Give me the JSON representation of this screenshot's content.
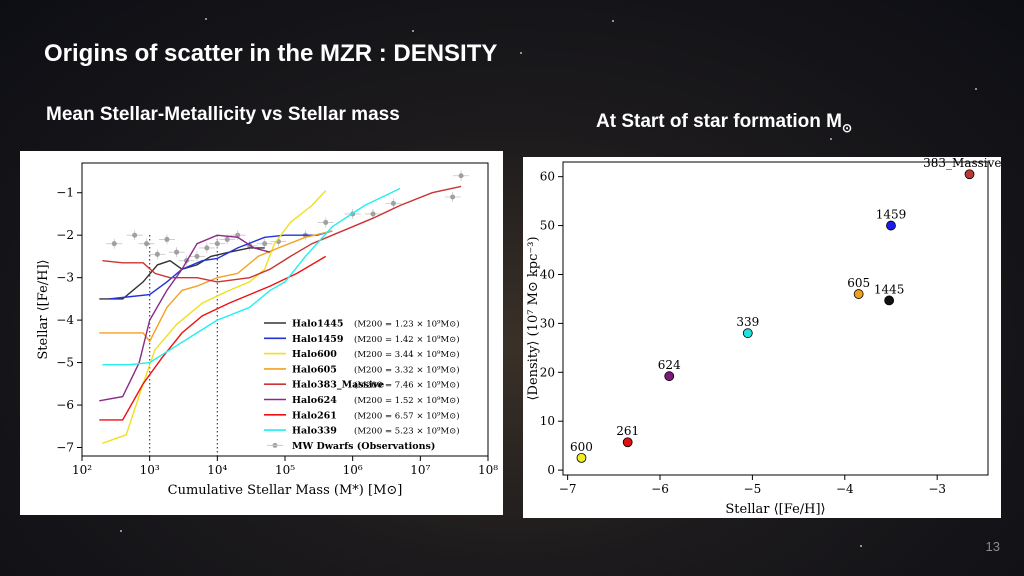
{
  "slide": {
    "title": "Origins of scatter in the MZR :  DENSITY",
    "left_subtitle": "Mean Stellar-Metallicity vs Stellar mass",
    "right_subtitle_main": "At Start of star formation M",
    "right_subtitle_sub": "⊙",
    "page_number": "13"
  },
  "chart_data": [
    {
      "type": "line",
      "xlabel": "Cumulative Stellar Mass (M*) [M⊙]",
      "ylabel": "Stellar ⟨[Fe/H]⟩",
      "xscale": "log",
      "xlim": [
        100,
        100000000
      ],
      "ylim": [
        -7.2,
        -0.3
      ],
      "x_tick_labels": [
        "10²",
        "10³",
        "10⁴",
        "10⁵",
        "10⁶",
        "10⁷",
        "10⁸"
      ],
      "y_tick_labels": [
        "−1",
        "−2",
        "−3",
        "−4",
        "−5",
        "−6",
        "−7"
      ],
      "legend_position": "lower-right",
      "vlines": [
        1000,
        10000
      ],
      "series": [
        {
          "name": "Halo1445",
          "mass_label": "(M200 = 1.23 × 10⁹M⊙)",
          "color": "#333333",
          "points": [
            [
              180,
              -3.5
            ],
            [
              400,
              -3.5
            ],
            [
              800,
              -3.1
            ],
            [
              1300,
              -2.7
            ],
            [
              2000,
              -2.6
            ],
            [
              3000,
              -2.8
            ],
            [
              5000,
              -2.7
            ],
            [
              8000,
              -2.5
            ],
            [
              15000,
              -2.4
            ],
            [
              30000,
              -2.3
            ],
            [
              50000,
              -2.3
            ]
          ]
        },
        {
          "name": "Halo1459",
          "mass_label": "(M200 = 1.42 × 10⁹M⊙)",
          "color": "#2233dd",
          "points": [
            [
              250,
              -3.5
            ],
            [
              1000,
              -3.4
            ],
            [
              1800,
              -3.1
            ],
            [
              3000,
              -2.8
            ],
            [
              6000,
              -2.6
            ],
            [
              10000,
              -2.55
            ],
            [
              20000,
              -2.3
            ],
            [
              50000,
              -2.05
            ],
            [
              100000,
              -2.0
            ],
            [
              300000,
              -2.0
            ],
            [
              500000,
              -1.9
            ]
          ]
        },
        {
          "name": "Halo600",
          "mass_label": "(M200 = 3.44 × 10⁹M⊙)",
          "color": "#f0e020",
          "points": [
            [
              200,
              -6.9
            ],
            [
              450,
              -6.7
            ],
            [
              800,
              -5.5
            ],
            [
              1200,
              -4.7
            ],
            [
              2500,
              -4.1
            ],
            [
              6000,
              -3.6
            ],
            [
              15000,
              -3.3
            ],
            [
              30000,
              -3.1
            ],
            [
              50000,
              -2.8
            ],
            [
              70000,
              -2.2
            ],
            [
              120000,
              -1.7
            ],
            [
              250000,
              -1.3
            ],
            [
              400000,
              -0.95
            ]
          ]
        },
        {
          "name": "Halo605",
          "mass_label": "(M200 = 3.32 × 10⁹M⊙)",
          "color": "#f5a020",
          "points": [
            [
              180,
              -4.3
            ],
            [
              400,
              -4.3
            ],
            [
              800,
              -4.3
            ],
            [
              1000,
              -4.5
            ],
            [
              1800,
              -3.7
            ],
            [
              3000,
              -3.3
            ],
            [
              5000,
              -3.2
            ],
            [
              10000,
              -3.0
            ],
            [
              20000,
              -2.9
            ],
            [
              40000,
              -2.5
            ],
            [
              80000,
              -2.3
            ],
            [
              200000,
              -2.05
            ],
            [
              500000,
              -1.9
            ]
          ]
        },
        {
          "name": "Halo383_Massive",
          "mass_label": "(M200 = 7.46 × 10⁹M⊙)",
          "color": "#cc3333",
          "points": [
            [
              200,
              -2.6
            ],
            [
              400,
              -2.65
            ],
            [
              800,
              -2.65
            ],
            [
              1200,
              -2.9
            ],
            [
              2000,
              -3.0
            ],
            [
              5000,
              -3.0
            ],
            [
              10000,
              -3.1
            ],
            [
              30000,
              -3.0
            ],
            [
              60000,
              -2.8
            ],
            [
              120000,
              -2.5
            ],
            [
              250000,
              -2.2
            ],
            [
              500000,
              -2.0
            ],
            [
              1000000,
              -1.8
            ],
            [
              2000000,
              -1.6
            ],
            [
              5000000,
              -1.3
            ],
            [
              15000000,
              -1.0
            ],
            [
              40000000,
              -0.85
            ]
          ]
        },
        {
          "name": "Halo624",
          "mass_label": "(M200 = 1.52 × 10⁹M⊙)",
          "color": "#8a2a8a",
          "points": [
            [
              180,
              -5.9
            ],
            [
              400,
              -5.8
            ],
            [
              700,
              -5.0
            ],
            [
              1000,
              -4.0
            ],
            [
              1800,
              -3.3
            ],
            [
              3000,
              -2.8
            ],
            [
              5000,
              -2.2
            ],
            [
              10000,
              -2.0
            ],
            [
              20000,
              -2.05
            ],
            [
              35000,
              -2.3
            ],
            [
              60000,
              -2.4
            ]
          ]
        },
        {
          "name": "Halo261",
          "mass_label": "(M200 = 6.57 × 10⁹M⊙)",
          "color": "#ee1111",
          "points": [
            [
              180,
              -6.35
            ],
            [
              400,
              -6.35
            ],
            [
              800,
              -5.5
            ],
            [
              1500,
              -4.9
            ],
            [
              3000,
              -4.3
            ],
            [
              6000,
              -3.9
            ],
            [
              15000,
              -3.6
            ],
            [
              30000,
              -3.4
            ],
            [
              60000,
              -3.2
            ],
            [
              150000,
              -2.9
            ],
            [
              400000,
              -2.5
            ]
          ]
        },
        {
          "name": "Halo339",
          "mass_label": "(M200 = 5.23 × 10⁹M⊙)",
          "color": "#22eeee",
          "points": [
            [
              200,
              -5.05
            ],
            [
              500,
              -5.05
            ],
            [
              1000,
              -5.0
            ],
            [
              2000,
              -4.7
            ],
            [
              5000,
              -4.3
            ],
            [
              10000,
              -4.0
            ],
            [
              30000,
              -3.7
            ],
            [
              60000,
              -3.3
            ],
            [
              100000,
              -3.1
            ],
            [
              200000,
              -2.5
            ],
            [
              500000,
              -1.8
            ],
            [
              1500000,
              -1.3
            ],
            [
              5000000,
              -0.9
            ]
          ]
        }
      ],
      "observations": {
        "name": "MW Dwarfs (Observations)",
        "color": "#a0a0a0",
        "points": [
          [
            300,
            -2.2
          ],
          [
            600,
            -2.0
          ],
          [
            900,
            -2.2
          ],
          [
            1300,
            -2.45
          ],
          [
            1800,
            -2.1
          ],
          [
            2500,
            -2.4
          ],
          [
            3500,
            -2.6
          ],
          [
            5000,
            -2.5
          ],
          [
            7000,
            -2.3
          ],
          [
            10000,
            -2.2
          ],
          [
            14000,
            -2.1
          ],
          [
            20000,
            -2.0
          ],
          [
            30000,
            -2.25
          ],
          [
            50000,
            -2.2
          ],
          [
            80000,
            -2.15
          ],
          [
            200000,
            -2.0
          ],
          [
            400000,
            -1.7
          ],
          [
            1000000,
            -1.5
          ],
          [
            2000000,
            -1.5
          ],
          [
            4000000,
            -1.25
          ],
          [
            30000000,
            -1.1
          ],
          [
            40000000,
            -0.6
          ]
        ]
      }
    },
    {
      "type": "scatter",
      "xlabel": "Stellar ⟨[Fe/H]⟩",
      "ylabel": "⟨Density⟩ (10⁷ M⊙ kpc⁻³)",
      "xlim": [
        -7.05,
        -2.45
      ],
      "ylim": [
        -1,
        63
      ],
      "x_tick_labels": [
        "−7",
        "−6",
        "−5",
        "−4",
        "−3"
      ],
      "y_tick_labels": [
        "0",
        "10",
        "20",
        "30",
        "40",
        "50",
        "60"
      ],
      "points": [
        {
          "label": "383_Massive",
          "x": -2.65,
          "y": 60.5,
          "color": "#b83a3a"
        },
        {
          "label": "1459",
          "x": -3.5,
          "y": 50,
          "color": "#1a1aee"
        },
        {
          "label": "605",
          "x": -3.85,
          "y": 36,
          "color": "#f0a020"
        },
        {
          "label": "1445",
          "x": -3.52,
          "y": 34.7,
          "color": "#111111"
        },
        {
          "label": "339",
          "x": -5.05,
          "y": 28,
          "color": "#22e0e0"
        },
        {
          "label": "624",
          "x": -5.9,
          "y": 19.2,
          "color": "#7a1a7a"
        },
        {
          "label": "261",
          "x": -6.35,
          "y": 5.7,
          "color": "#dd1111"
        },
        {
          "label": "600",
          "x": -6.85,
          "y": 2.5,
          "color": "#eeee22"
        }
      ]
    }
  ]
}
